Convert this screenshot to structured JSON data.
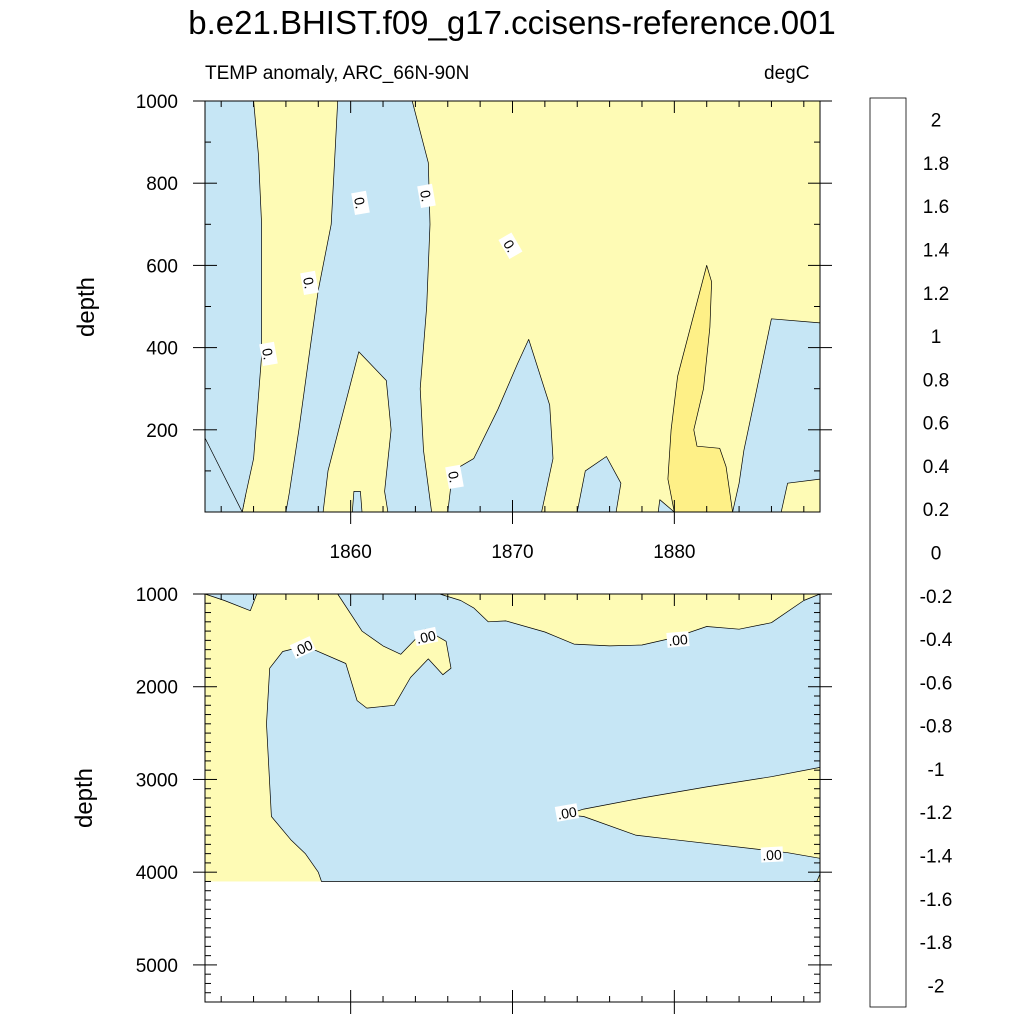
{
  "title": "b.e21.BHIST.f09_g17.ccisens-reference.001",
  "subtitle_left": "TEMP anomaly, ARC_66N-90N",
  "subtitle_right": "degC",
  "colors": {
    "positive_fill": "#fefbb5",
    "warmer_fill": "#fef087",
    "negative_fill": "#c6e6f5",
    "contour_line": "#000000"
  },
  "chart_data": [
    {
      "type": "heatmap",
      "panel": "upper",
      "ylabel": "depth",
      "ylim": [
        1000,
        0
      ],
      "xlim": [
        1851,
        1889
      ],
      "x_ticks": [
        1860,
        1870,
        1880
      ],
      "y_ticks": [
        200,
        400,
        600,
        800,
        1000
      ],
      "contour_labels": [
        "0.",
        "0.",
        "0.",
        "0.",
        "0.",
        "0."
      ],
      "regions": [
        {
          "sign": "negative",
          "points": [
            [
              1851,
              180
            ],
            [
              1852.3,
              105
            ],
            [
              1853.5,
              40
            ],
            [
              1853.3,
              0
            ],
            [
              1851,
              0
            ]
          ]
        },
        {
          "sign": "negative",
          "points": [
            [
              1853.3,
              0
            ],
            [
              1853.5,
              40
            ],
            [
              1854,
              130
            ],
            [
              1854.5,
              380
            ],
            [
              1854.5,
              700
            ],
            [
              1854.3,
              870
            ],
            [
              1854,
              1000
            ],
            [
              1851,
              1000
            ],
            [
              1851,
              180
            ]
          ]
        },
        {
          "sign": "negative",
          "points": [
            [
              1856,
              0
            ],
            [
              1856.2,
              45
            ],
            [
              1856.8,
              200
            ],
            [
              1857.5,
              400
            ],
            [
              1858,
              540
            ],
            [
              1858.8,
              700
            ],
            [
              1859,
              850
            ],
            [
              1859.2,
              1000
            ],
            [
              1863.8,
              1000
            ],
            [
              1864.8,
              850
            ],
            [
              1864.9,
              700
            ],
            [
              1864.7,
              500
            ],
            [
              1864.3,
              300
            ],
            [
              1864.5,
              150
            ],
            [
              1865,
              0
            ],
            [
              1862.3,
              0
            ],
            [
              1862.1,
              50
            ],
            [
              1862.5,
              200
            ],
            [
              1862.2,
              320
            ],
            [
              1860.5,
              390
            ],
            [
              1858.6,
              100
            ],
            [
              1858.3,
              0
            ]
          ]
        },
        {
          "sign": "negative",
          "points": [
            [
              1860.1,
              0
            ],
            [
              1860.2,
              50
            ],
            [
              1860.6,
              50
            ],
            [
              1860.7,
              0
            ]
          ]
        },
        {
          "sign": "negative",
          "points": [
            [
              1866,
              0
            ],
            [
              1866.3,
              100
            ],
            [
              1867.6,
              130
            ],
            [
              1869.1,
              250
            ],
            [
              1870.3,
              360
            ],
            [
              1871,
              420
            ],
            [
              1872.3,
              260
            ],
            [
              1872.5,
              130
            ],
            [
              1871.8,
              0
            ]
          ]
        },
        {
          "sign": "negative",
          "points": [
            [
              1874,
              0
            ],
            [
              1874.5,
              100
            ],
            [
              1875.8,
              135
            ],
            [
              1876.7,
              70
            ],
            [
              1876.4,
              0
            ]
          ]
        },
        {
          "sign": "negative",
          "points": [
            [
              1879,
              0
            ],
            [
              1879.1,
              30
            ],
            [
              1880,
              0
            ]
          ]
        },
        {
          "sign": "negative",
          "points": [
            [
              1883.6,
              0
            ],
            [
              1884,
              70
            ],
            [
              1884.3,
              150
            ],
            [
              1885.1,
              300
            ],
            [
              1886,
              470
            ],
            [
              1889,
              460
            ],
            [
              1889,
              80
            ],
            [
              1887,
              70
            ],
            [
              1886.6,
              0
            ]
          ]
        },
        {
          "sign": "warmer",
          "points": [
            [
              1880,
              0
            ],
            [
              1879.6,
              80
            ],
            [
              1879.8,
              200
            ],
            [
              1880.2,
              330
            ],
            [
              1881,
              450
            ],
            [
              1882,
              600
            ],
            [
              1882.3,
              560
            ],
            [
              1882.2,
              450
            ],
            [
              1881.8,
              300
            ],
            [
              1881.2,
              200
            ],
            [
              1881.4,
              160
            ],
            [
              1882.8,
              155
            ],
            [
              1883.2,
              110
            ],
            [
              1883.6,
              0
            ]
          ]
        }
      ]
    },
    {
      "type": "heatmap",
      "panel": "lower",
      "ylabel": "depth",
      "ylim": [
        1000,
        5400
      ],
      "xlim": [
        1851,
        1889
      ],
      "y_ticks": [
        1000,
        2000,
        3000,
        4000,
        5000
      ],
      "data_bottom": 4100,
      "contour_labels": [
        ".00",
        ".00",
        ".00",
        ".00",
        ".00"
      ],
      "regions": [
        {
          "sign": "negative",
          "points": [
            [
              1851,
              1000
            ],
            [
              1852.2,
              1070
            ],
            [
              1853.8,
              1180
            ],
            [
              1854.2,
              1000
            ]
          ]
        },
        {
          "sign": "negative",
          "points": [
            [
              1859.2,
              1000
            ],
            [
              1860.7,
              1400
            ],
            [
              1862,
              1560
            ],
            [
              1863.1,
              1650
            ],
            [
              1864.6,
              1380
            ],
            [
              1865.9,
              1510
            ],
            [
              1866.2,
              1800
            ],
            [
              1865.7,
              1870
            ],
            [
              1864.8,
              1700
            ],
            [
              1863.7,
              1900
            ],
            [
              1862.7,
              2200
            ],
            [
              1861,
              2230
            ],
            [
              1860.4,
              2150
            ],
            [
              1859.7,
              1750
            ],
            [
              1857.2,
              1560
            ],
            [
              1855.8,
              1620
            ],
            [
              1855,
              1800
            ],
            [
              1854.8,
              2400
            ],
            [
              1855.1,
              3400
            ],
            [
              1856.3,
              3650
            ],
            [
              1857.2,
              3800
            ],
            [
              1858,
              4000
            ],
            [
              1858.2,
              4100
            ],
            [
              1888.8,
              4100
            ],
            [
              1889,
              4020
            ],
            [
              1889,
              3850
            ],
            [
              1887,
              3790
            ],
            [
              1880,
              3650
            ],
            [
              1877.6,
              3600
            ],
            [
              1874.4,
              3400
            ],
            [
              1873.3,
              3380
            ],
            [
              1874.4,
              3320
            ],
            [
              1878,
              3200
            ],
            [
              1882,
              3080
            ],
            [
              1886,
              2970
            ],
            [
              1889,
              2870
            ],
            [
              1889,
              1000
            ],
            [
              1888,
              1070
            ],
            [
              1886,
              1310
            ],
            [
              1884,
              1380
            ],
            [
              1882,
              1350
            ],
            [
              1880,
              1470
            ],
            [
              1878,
              1550
            ],
            [
              1876,
              1560
            ],
            [
              1873.8,
              1540
            ],
            [
              1872,
              1410
            ],
            [
              1869.6,
              1290
            ],
            [
              1868.5,
              1300
            ],
            [
              1867.6,
              1150
            ],
            [
              1866.8,
              1070
            ],
            [
              1865.5,
              1000
            ]
          ]
        }
      ]
    }
  ],
  "colorbar": {
    "labels": [
      "2",
      "1.8",
      "1.6",
      "1.4",
      "1.2",
      "1",
      "0.8",
      "0.6",
      "0.4",
      "0.2",
      "0",
      "-0.2",
      "-0.4",
      "-0.6",
      "-0.8",
      "-1",
      "-1.2",
      "-1.4",
      "-1.6",
      "-1.8",
      "-2"
    ],
    "colors": [
      "#f7b0b0",
      "#ef8080",
      "#e05050",
      "#d01818",
      "#d00000",
      "#e00000",
      "#f00000",
      "#ff1800",
      "#ff3000",
      "#ff4a00",
      "#ff6200",
      "#ff7a00",
      "#ff8c00",
      "#ff9c00",
      "#ffaa00",
      "#ffba10",
      "#ffcc20",
      "#ffd840",
      "#fee460",
      "#fef087",
      "#fefbb5",
      "#c6e6f5",
      "#b0dcf0",
      "#9ad2ee",
      "#84c8ec",
      "#6ec0ee",
      "#50baf2",
      "#30b2f6",
      "#18aaf8",
      "#10a0f8",
      "#1092f4",
      "#1882ee",
      "#2070ea",
      "#2860e6",
      "#3052e0",
      "#3448de",
      "#2c40e6",
      "#1c2cf0",
      "#1018f8",
      "#2010f8",
      "#5014ec",
      "#8020e8"
    ]
  }
}
